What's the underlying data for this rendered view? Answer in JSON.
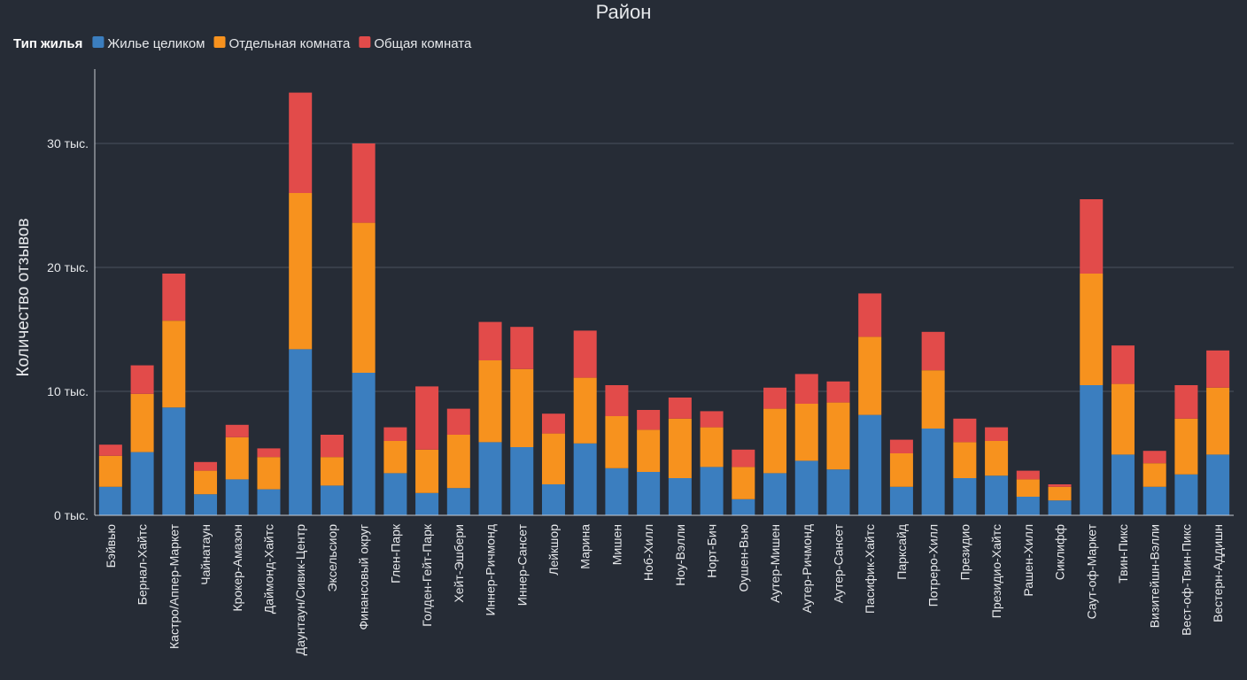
{
  "chart_data": {
    "type": "bar",
    "stacked": true,
    "title": "Район",
    "ylabel": "Количество отзывов",
    "xlabel": "",
    "ylim": [
      0,
      36000
    ],
    "y_ticks": [
      {
        "value": 0,
        "label": "0 тыс."
      },
      {
        "value": 10000,
        "label": "10 тыс."
      },
      {
        "value": 20000,
        "label": "20 тыс."
      },
      {
        "value": 30000,
        "label": "30 тыс."
      }
    ],
    "grid": true,
    "legend": {
      "title": "Тип жилья",
      "position": "top-left"
    },
    "categories": [
      "Бэйвью",
      "Бернал-Хайтс",
      "Кастро/Аппер-Маркет",
      "Чайнатаун",
      "Крокер-Амазон",
      "Даймонд-Хайтс",
      "Даунтаун/Сивик-Центр",
      "Эксельсиор",
      "Финансовый округ",
      "Глен-Парк",
      "Голден-Гейт-Парк",
      "Хейт-Эшбери",
      "Иннер-Ричмонд",
      "Иннер-Сансет",
      "Лейкшор",
      "Марина",
      "Мишен",
      "Ноб-Хилл",
      "Ноу-Вэлли",
      "Норт-Бич",
      "Оушен-Вью",
      "Аутер-Мишен",
      "Аутер-Ричмонд",
      "Аутер-Сансет",
      "Пасифик-Хайтс",
      "Парксайд",
      "Потреро-Хилл",
      "Президио",
      "Президио-Хайтс",
      "Рашен-Хилл",
      "Сиклифф",
      "Саут-оф-Маркет",
      "Твин-Пикс",
      "Визитейшн-Вэлли",
      "Вест-оф-Твин-Пикс",
      "Вестерн-Аддишн"
    ],
    "series": [
      {
        "name": "Жилье целиком",
        "color": "#3b7ebf",
        "values": [
          2300,
          5100,
          8700,
          1700,
          2900,
          2100,
          13400,
          2400,
          11500,
          3400,
          1800,
          2200,
          5900,
          5500,
          2500,
          5800,
          3800,
          3500,
          3000,
          3900,
          1300,
          3400,
          4400,
          3700,
          8100,
          2300,
          7000,
          3000,
          3200,
          1500,
          1200,
          10500,
          4900,
          2300,
          3300,
          4900
        ]
      },
      {
        "name": "Отдельная комната",
        "color": "#f7921e",
        "values": [
          2500,
          4700,
          7000,
          1900,
          3400,
          2600,
          12600,
          2300,
          12100,
          2600,
          3500,
          4300,
          6600,
          6300,
          4100,
          5300,
          4200,
          3400,
          4800,
          3200,
          2600,
          5200,
          4600,
          5400,
          6300,
          2700,
          4700,
          2900,
          2800,
          1400,
          1100,
          9000,
          5700,
          1900,
          4500,
          5400
        ]
      },
      {
        "name": "Общая комната",
        "color": "#e24b4a",
        "values": [
          900,
          2300,
          3800,
          700,
          1000,
          700,
          8100,
          1800,
          6400,
          1100,
          5100,
          2100,
          3100,
          3400,
          1600,
          3800,
          2500,
          1600,
          1700,
          1300,
          1400,
          1700,
          2400,
          1700,
          3500,
          1100,
          3100,
          1900,
          1100,
          700,
          200,
          6000,
          3100,
          1000,
          2700,
          3000
        ]
      }
    ]
  }
}
